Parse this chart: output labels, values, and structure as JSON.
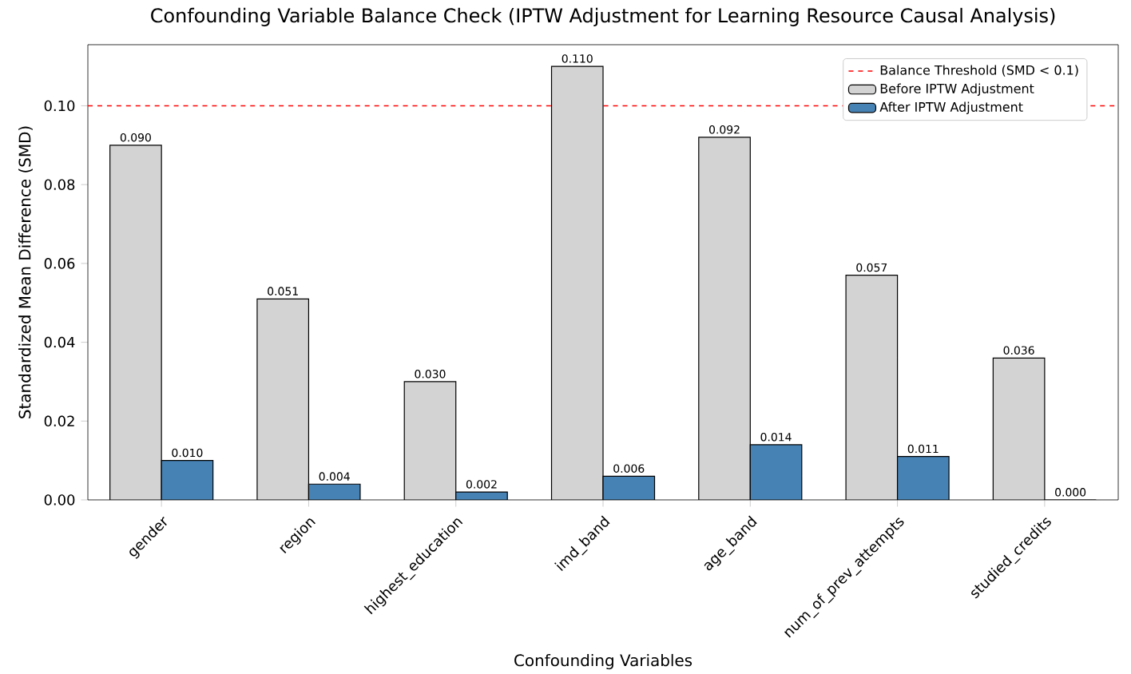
{
  "chart_data": {
    "type": "bar",
    "title": "Confounding Variable Balance Check (IPTW Adjustment for Learning Resource Causal Analysis)",
    "xlabel": "Confounding Variables",
    "ylabel": "Standardized Mean Difference (SMD)",
    "categories": [
      "gender",
      "region",
      "highest_education",
      "imd_band",
      "age_band",
      "num_of_prev_attempts",
      "studied_credits"
    ],
    "series": [
      {
        "name": "Before IPTW Adjustment",
        "color": "#d3d3d3",
        "values": [
          0.09,
          0.051,
          0.03,
          0.11,
          0.092,
          0.057,
          0.036
        ],
        "value_labels": [
          "0.090",
          "0.051",
          "0.030",
          "0.110",
          "0.092",
          "0.057",
          "0.036"
        ]
      },
      {
        "name": "After IPTW Adjustment",
        "color": "#4682b4",
        "values": [
          0.01,
          0.004,
          0.002,
          0.006,
          0.014,
          0.011,
          0.0
        ],
        "value_labels": [
          "0.010",
          "0.004",
          "0.002",
          "0.006",
          "0.014",
          "0.011",
          "0.000"
        ]
      }
    ],
    "ylim": [
      0,
      0.1155
    ],
    "yticks": [
      {
        "value": 0,
        "label": "0.00"
      },
      {
        "value": 0.02,
        "label": "0.02"
      },
      {
        "value": 0.04,
        "label": "0.04"
      },
      {
        "value": 0.06,
        "label": "0.06"
      },
      {
        "value": 0.08,
        "label": "0.08"
      },
      {
        "value": 0.1,
        "label": "0.10"
      }
    ],
    "ref_lines": [
      {
        "axis": "y",
        "value": 0.1,
        "label": "Balance Threshold (SMD < 0.1)",
        "color": "#ff0000",
        "line_style": "dashed"
      }
    ],
    "legend": "top right"
  }
}
